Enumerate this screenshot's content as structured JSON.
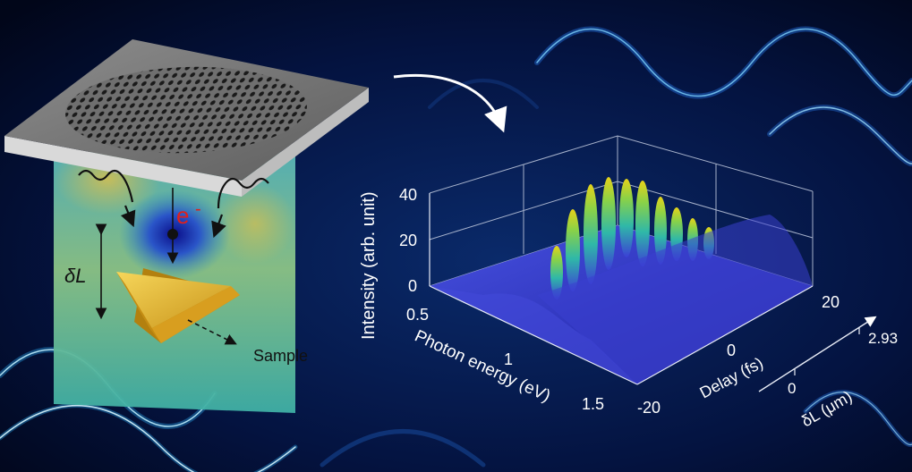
{
  "schematic": {
    "electron_label": "e",
    "electron_charge": "-",
    "separation_label": "δL",
    "sample_label": "Sample"
  },
  "plot": {
    "z_axis": {
      "label": "Intensity (arb. unit)",
      "ticks": [
        "0",
        "20",
        "40"
      ]
    },
    "x_axis": {
      "label": "Photon energy (eV)",
      "ticks": [
        "0.5",
        "1",
        "1.5"
      ]
    },
    "y_axis": {
      "label": "Delay (fs)",
      "ticks": [
        "20",
        "0",
        "-20"
      ]
    },
    "dl_axis": {
      "label": "δL (μm)",
      "ticks": [
        "0",
        "2.93"
      ]
    }
  },
  "colors": {
    "background": "#020a24",
    "surface_base": "#3b3fd6",
    "peak_top": "#e6d21a",
    "peak_mid": "#2fb8a8",
    "sample": "#e0b52c",
    "electron_label": "#e0201c"
  },
  "icons": [
    "photonic-crystal-membrane",
    "wavy-photon-arrow",
    "electron-dot",
    "triangular-nanoprism",
    "curved-arrow"
  ]
}
